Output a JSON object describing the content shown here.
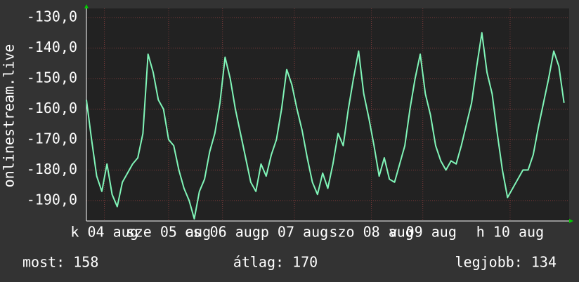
{
  "chart_data": {
    "type": "line",
    "y_label": "onlinestream.live",
    "xlim": [
      0,
      188
    ],
    "xticks": [
      {
        "value": 7,
        "label": "k 04 aug"
      },
      {
        "value": 32,
        "label": "sze 05 aug"
      },
      {
        "value": 53,
        "label": "cs 06 aug"
      },
      {
        "value": 81,
        "label": "p 07 aug"
      },
      {
        "value": 111,
        "label": "szo 08 aug"
      },
      {
        "value": 131,
        "label": "v 09 aug"
      },
      {
        "value": 165,
        "label": "h 10 aug"
      }
    ],
    "ylim": [
      -196.7,
      -127
    ],
    "yticks": [
      {
        "value": -130,
        "label": "-130,0"
      },
      {
        "value": -140,
        "label": "-140,0"
      },
      {
        "value": -150,
        "label": "-150,0"
      },
      {
        "value": -160,
        "label": "-160,0"
      },
      {
        "value": -170,
        "label": "-170,0"
      },
      {
        "value": -180,
        "label": "-180,0"
      },
      {
        "value": -190,
        "label": "-190,0"
      }
    ],
    "grid": true,
    "x": [
      0,
      2,
      4,
      6,
      8,
      10,
      12,
      14,
      16,
      18,
      20,
      22,
      24,
      26,
      28,
      30,
      32,
      34,
      36,
      38,
      40,
      42,
      44,
      46,
      48,
      50,
      52,
      54,
      56,
      58,
      60,
      62,
      64,
      66,
      68,
      70,
      72,
      74,
      76,
      78,
      80,
      82,
      84,
      86,
      88,
      90,
      92,
      94,
      96,
      98,
      100,
      102,
      104,
      106,
      108,
      110,
      112,
      114,
      116,
      118,
      120,
      122,
      124,
      126,
      128,
      130,
      132,
      134,
      136,
      138,
      140,
      142,
      144,
      146,
      148,
      150,
      152,
      154,
      156,
      158,
      160,
      162,
      164,
      166,
      168,
      170,
      172,
      174,
      176,
      178,
      180,
      182,
      184,
      186
    ],
    "series": [
      {
        "color": "#80f5b8",
        "values": [
          -157,
          -170,
          -182,
          -187,
          -178,
          -188,
          -192,
          -184,
          -181,
          -178,
          -176,
          -168,
          -142,
          -148,
          -157,
          -160,
          -170,
          -172,
          -180,
          -186,
          -190,
          -196,
          -187,
          -183,
          -174,
          -168,
          -158,
          -143,
          -150,
          -160,
          -168,
          -176,
          -184,
          -187,
          -178,
          -182,
          -175,
          -170,
          -160,
          -147,
          -152,
          -160,
          -167,
          -176,
          -184,
          -188,
          -181,
          -186,
          -178,
          -168,
          -172,
          -160,
          -150,
          -141,
          -155,
          -163,
          -172,
          -182,
          -176,
          -183,
          -184,
          -178,
          -172,
          -160,
          -150,
          -142,
          -155,
          -162,
          -172,
          -177,
          -180,
          -177,
          -178,
          -172,
          -165,
          -158,
          -146,
          -135,
          -148,
          -155,
          -168,
          -180,
          -189,
          -186,
          -183,
          -180,
          -180,
          -175,
          -166,
          -158,
          -150,
          -141,
          -146,
          -158
        ]
      }
    ],
    "stats": [
      "most: 158",
      "átlag: 170",
      "legjobb: 134"
    ]
  }
}
